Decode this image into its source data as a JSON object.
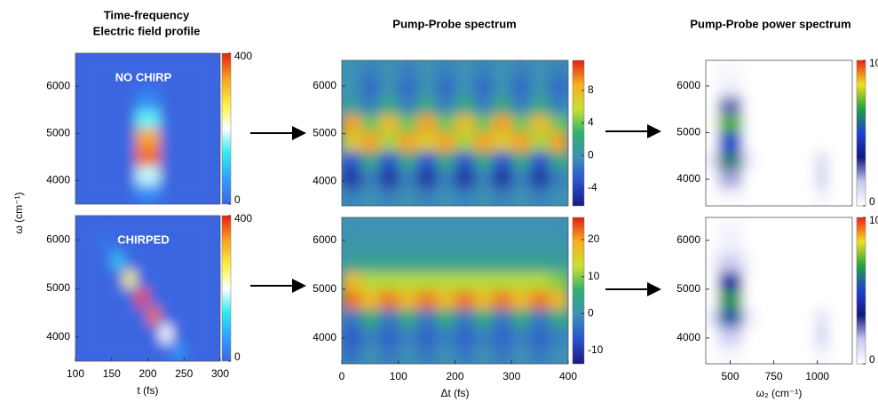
{
  "chart_data": [
    {
      "type": "heatmap",
      "title": [
        "Time-frequency",
        "Electric field profile"
      ],
      "ylabel": "ω (cm⁻¹)",
      "annotation": "NO CHIRP",
      "xlim": [
        100,
        300
      ],
      "ylim": [
        3500,
        6700
      ],
      "yticks": [
        4000,
        5000,
        6000
      ],
      "clim": [
        0,
        400
      ],
      "cticks": [
        0,
        400
      ],
      "colormap": [
        "#3a66e0",
        "#2fa0ff",
        "#30e8f0",
        "#ffffff",
        "#f8f040",
        "#f8a020",
        "#e82010"
      ],
      "z": [
        [
          0,
          0,
          0,
          0,
          0,
          0,
          0,
          0,
          0,
          0,
          0,
          0
        ],
        [
          0,
          0,
          0,
          0,
          0,
          0,
          0,
          0,
          0,
          0,
          0,
          0
        ],
        [
          0,
          0,
          0,
          0,
          0,
          40,
          40,
          0,
          0,
          0,
          0,
          0
        ],
        [
          0,
          0,
          0,
          0,
          0,
          150,
          150,
          0,
          0,
          0,
          0,
          0
        ],
        [
          0,
          0,
          0,
          0,
          0,
          330,
          330,
          0,
          0,
          0,
          0,
          0
        ],
        [
          0,
          0,
          0,
          0,
          0,
          360,
          360,
          0,
          0,
          0,
          0,
          0
        ],
        [
          0,
          0,
          0,
          0,
          0,
          180,
          180,
          0,
          0,
          0,
          0,
          0
        ],
        [
          0,
          0,
          0,
          0,
          0,
          40,
          40,
          0,
          0,
          0,
          0,
          0
        ]
      ]
    },
    {
      "type": "heatmap",
      "annotation": "CHIRPED",
      "xlabel": "t (fs)",
      "xlim": [
        100,
        300
      ],
      "ylim": [
        3500,
        6500
      ],
      "xticks": [
        100,
        150,
        200,
        250,
        300
      ],
      "yticks": [
        4000,
        5000,
        6000
      ],
      "clim": [
        0,
        400
      ],
      "cticks": [
        0,
        400
      ],
      "colormap": [
        "#3a66e0",
        "#2fa0ff",
        "#30e8f0",
        "#ffffff",
        "#f8f040",
        "#f8a020",
        "#e82010"
      ],
      "z": [
        [
          0,
          0,
          0,
          0,
          0,
          0,
          0,
          0,
          0,
          0,
          0,
          0
        ],
        [
          0,
          0,
          20,
          0,
          0,
          0,
          0,
          0,
          0,
          0,
          0,
          0
        ],
        [
          0,
          0,
          0,
          100,
          0,
          0,
          0,
          0,
          0,
          0,
          0,
          0
        ],
        [
          0,
          0,
          0,
          0,
          250,
          0,
          0,
          0,
          0,
          0,
          0,
          0
        ],
        [
          0,
          0,
          0,
          0,
          0,
          380,
          0,
          0,
          0,
          0,
          0,
          0
        ],
        [
          0,
          0,
          0,
          0,
          0,
          0,
          360,
          0,
          0,
          0,
          0,
          0
        ],
        [
          0,
          0,
          0,
          0,
          0,
          0,
          0,
          200,
          0,
          0,
          0,
          0
        ],
        [
          0,
          0,
          0,
          0,
          0,
          0,
          0,
          0,
          60,
          0,
          0,
          0
        ]
      ]
    },
    {
      "type": "heatmap",
      "title": "Pump-Probe spectrum",
      "xlim": [
        0,
        400
      ],
      "ylim": [
        3480,
        6540
      ],
      "yticks": [
        4000,
        5000,
        6000
      ],
      "clim": [
        -6.2,
        11.7
      ],
      "cticks": [
        -4,
        0,
        4,
        8
      ],
      "colormap": [
        "#1a1a80",
        "#2a50d0",
        "#3e8fb8",
        "#30b070",
        "#c8e030",
        "#f8b020",
        "#e02010"
      ],
      "z": [
        [
          0,
          -1,
          0,
          -1,
          0,
          -1,
          0,
          -1,
          0,
          -1,
          0,
          -1
        ],
        [
          0,
          -2,
          0,
          -2,
          0,
          -2,
          0,
          -2,
          0,
          -2,
          0,
          -2
        ],
        [
          1,
          -1,
          2,
          -1,
          2,
          -1,
          2,
          -1,
          2,
          -1,
          2,
          -1
        ],
        [
          9,
          4,
          8,
          4,
          9,
          4,
          8,
          4,
          9,
          4,
          8,
          4
        ],
        [
          7,
          9,
          5,
          9,
          7,
          9,
          5,
          9,
          7,
          9,
          5,
          9
        ],
        [
          -3,
          2,
          -3,
          2,
          -3,
          2,
          -3,
          2,
          -3,
          2,
          -3,
          2
        ],
        [
          -5,
          -1,
          -5,
          -1,
          -5,
          -1,
          -5,
          -1,
          -5,
          -1,
          -5,
          -1
        ],
        [
          -1,
          0,
          -1,
          0,
          -1,
          0,
          -1,
          0,
          -1,
          0,
          -1,
          0
        ]
      ]
    },
    {
      "type": "heatmap",
      "xlabel": "Δt (fs)",
      "xlim": [
        0,
        400
      ],
      "ylim": [
        3470,
        6470
      ],
      "xticks": [
        0,
        100,
        200,
        300,
        400
      ],
      "yticks": [
        4000,
        5000,
        6000
      ],
      "clim": [
        -13.6,
        26
      ],
      "cticks": [
        -10,
        0,
        10,
        20
      ],
      "colormap": [
        "#1a1a80",
        "#2a50d0",
        "#3e8fb8",
        "#30b070",
        "#c8e030",
        "#f8b020",
        "#e02010"
      ],
      "z": [
        [
          0,
          0,
          0,
          0,
          0,
          0,
          0,
          0,
          0,
          0,
          0,
          0
        ],
        [
          1,
          1,
          1,
          1,
          1,
          1,
          1,
          1,
          1,
          1,
          1,
          1
        ],
        [
          3,
          3,
          3,
          3,
          3,
          3,
          3,
          3,
          3,
          3,
          3,
          3
        ],
        [
          18,
          12,
          12,
          12,
          12,
          12,
          12,
          12,
          12,
          12,
          12,
          10
        ],
        [
          22,
          18,
          22,
          18,
          22,
          18,
          22,
          18,
          22,
          18,
          22,
          18
        ],
        [
          -3,
          5,
          -3,
          5,
          -3,
          5,
          -3,
          5,
          -3,
          5,
          -3,
          5
        ],
        [
          -6,
          -2,
          -5,
          -2,
          -5,
          -2,
          -5,
          -2,
          -5,
          -2,
          -5,
          -2
        ],
        [
          -4,
          0,
          -3,
          0,
          -3,
          0,
          -3,
          0,
          -3,
          0,
          -3,
          0
        ]
      ]
    },
    {
      "type": "heatmap",
      "title": "Pump-Probe power spectrum",
      "xlim": [
        360,
        1200
      ],
      "ylim": [
        3430,
        6550
      ],
      "yticks": [
        4000,
        5000,
        6000
      ],
      "clim": [
        0,
        10
      ],
      "cticks": [
        0,
        10
      ],
      "colormap": [
        "#ffffff",
        "#c8c8f0",
        "#101880",
        "#2040d0",
        "#20a040",
        "#f0e020",
        "#f02010"
      ],
      "z": [
        [
          0,
          0.2,
          0.2,
          0,
          0,
          0,
          0,
          0,
          0,
          0,
          0,
          0
        ],
        [
          0,
          0.5,
          0.5,
          0,
          0,
          0,
          0,
          0,
          0,
          0,
          0,
          0
        ],
        [
          0,
          2.5,
          2.5,
          0,
          0,
          0,
          0,
          0,
          0,
          0,
          0,
          0
        ],
        [
          0,
          7,
          7,
          0,
          0,
          0,
          0,
          0,
          0,
          0,
          0,
          0
        ],
        [
          0,
          5,
          5,
          0,
          0,
          0,
          0,
          0,
          0,
          0,
          0,
          0
        ],
        [
          0.8,
          6,
          6,
          0.8,
          0,
          0,
          0,
          0,
          0,
          1.2,
          0,
          0
        ],
        [
          0,
          2,
          2,
          0,
          0,
          0,
          0,
          0,
          0,
          1.5,
          0,
          0
        ],
        [
          0,
          0.3,
          0.3,
          0,
          0,
          0,
          0,
          0,
          0,
          0.5,
          0,
          0
        ]
      ]
    },
    {
      "type": "heatmap",
      "xlabel": "ω₂ (cm⁻¹)",
      "xlim": [
        360,
        1200
      ],
      "ylim": [
        3470,
        6470
      ],
      "xticks": [
        500,
        750,
        1000
      ],
      "yticks": [
        4000,
        5000,
        6000
      ],
      "clim": [
        0,
        10
      ],
      "cticks": [
        0,
        10
      ],
      "colormap": [
        "#ffffff",
        "#c8c8f0",
        "#101880",
        "#2040d0",
        "#20a040",
        "#f0e020",
        "#f02010"
      ],
      "z": [
        [
          0,
          0.3,
          0.3,
          0,
          0,
          0,
          0,
          0,
          0,
          0,
          0,
          0
        ],
        [
          0,
          0.5,
          0.5,
          0,
          0,
          0,
          0,
          0,
          0,
          0,
          0,
          0
        ],
        [
          0.3,
          1.5,
          1.5,
          0.3,
          0,
          0,
          0,
          0,
          0,
          0,
          0,
          0
        ],
        [
          0,
          4,
          4,
          0,
          0,
          0,
          0,
          0,
          0,
          0,
          0,
          0
        ],
        [
          0,
          6.5,
          6.5,
          0,
          0,
          0,
          0,
          0,
          0,
          0,
          0,
          0
        ],
        [
          0.8,
          5.5,
          5.5,
          0.8,
          0,
          0,
          0,
          0,
          0,
          1,
          0,
          0
        ],
        [
          0,
          1.5,
          1.5,
          0,
          0,
          0,
          0,
          0,
          0,
          1.5,
          0,
          0
        ],
        [
          0,
          0.3,
          0.3,
          0,
          0,
          0,
          0,
          0,
          0,
          0.5,
          0,
          0
        ]
      ]
    }
  ]
}
